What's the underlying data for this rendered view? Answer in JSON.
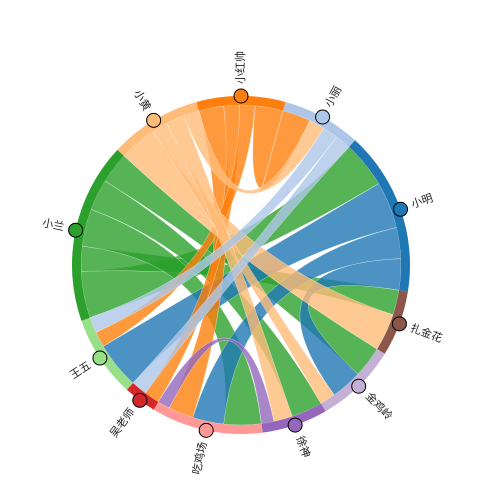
{
  "nodes": [
    {
      "label": "小红帅",
      "color": "#ff7f0e"
    },
    {
      "label": "小丽",
      "color": "#aec7e8"
    },
    {
      "label": "小明",
      "color": "#1f77b4"
    },
    {
      "label": "扎金花",
      "color": "#8c564b"
    },
    {
      "label": "金鸡岭",
      "color": "#c5b0d5"
    },
    {
      "label": "徐神",
      "color": "#9467bd"
    },
    {
      "label": "吃鸡场",
      "color": "#ff9896"
    },
    {
      "label": "吴老师",
      "color": "#d62728"
    },
    {
      "label": "王五",
      "color": "#98df8a"
    },
    {
      "label": "小兰",
      "color": "#2ca02c"
    },
    {
      "label": "小黄",
      "color": "#ffbb78"
    }
  ],
  "links": [
    {
      "source": 9,
      "target": 2,
      "value": 15
    },
    {
      "source": 9,
      "target": 3,
      "value": 8
    },
    {
      "source": 9,
      "target": 6,
      "value": 12
    },
    {
      "source": 9,
      "target": 5,
      "value": 10
    },
    {
      "source": 9,
      "target": 4,
      "value": 10
    },
    {
      "source": 2,
      "target": 8,
      "value": 15
    },
    {
      "source": 2,
      "target": 6,
      "value": 10
    },
    {
      "source": 2,
      "target": 4,
      "value": 10
    },
    {
      "source": 0,
      "target": 6,
      "value": 8
    },
    {
      "source": 0,
      "target": 7,
      "value": 5
    },
    {
      "source": 0,
      "target": 8,
      "value": 5
    },
    {
      "source": 0,
      "target": 1,
      "value": 9
    },
    {
      "source": 10,
      "target": 3,
      "value": 12
    },
    {
      "source": 10,
      "target": 4,
      "value": 5
    },
    {
      "source": 10,
      "target": 5,
      "value": 6
    },
    {
      "source": 10,
      "target": 1,
      "value": 5
    },
    {
      "source": 1,
      "target": 8,
      "value": 5
    },
    {
      "source": 1,
      "target": 7,
      "value": 5
    },
    {
      "source": 5,
      "target": 6,
      "value": 4
    }
  ]
}
